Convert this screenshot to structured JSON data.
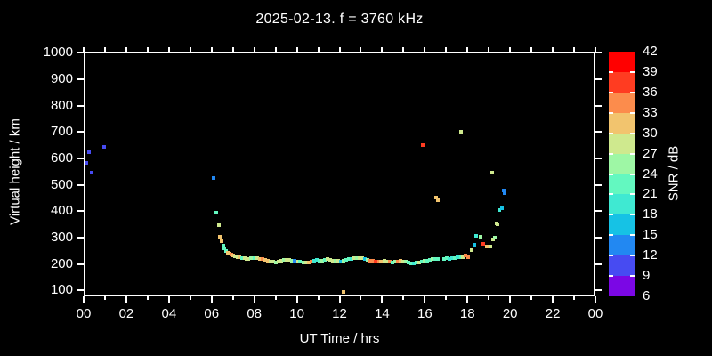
{
  "title": "2025-02-13. f = 3760 kHz",
  "x_axis": {
    "label": "UT Time / hrs",
    "tick_hours": [
      0,
      2,
      4,
      6,
      8,
      10,
      12,
      14,
      16,
      18,
      20,
      22,
      24
    ],
    "tick_labels": [
      "00",
      "02",
      "04",
      "06",
      "08",
      "10",
      "12",
      "14",
      "16",
      "18",
      "20",
      "22",
      "00"
    ]
  },
  "y_axis": {
    "label": "Virtual height / km",
    "tick_values": [
      100,
      200,
      300,
      400,
      500,
      600,
      700,
      800,
      900,
      1000
    ]
  },
  "colorbar": {
    "label": "SNR / dB",
    "levels_low_to_high": [
      6,
      9,
      12,
      15,
      18,
      21,
      24,
      27,
      30,
      33,
      36,
      39,
      42
    ],
    "colors_low_to_high": [
      "#7b07e5",
      "#474bf2",
      "#2288f2",
      "#16c2e5",
      "#3fe9d2",
      "#63f8c0",
      "#9ef7a5",
      "#cfe98e",
      "#f2c46e",
      "#fc8c4c",
      "#ff3c21",
      "#ff0000"
    ]
  },
  "chart_data": {
    "type": "scatter",
    "title": "2025-02-13. f = 3760 kHz",
    "xlabel": "UT Time / hrs",
    "ylabel": "Virtual height / km",
    "color_label": "SNR / dB",
    "xlim_hours": [
      0,
      24
    ],
    "ylim_km": [
      75,
      1005
    ],
    "grid": false,
    "point_format": [
      "time_hours_ut",
      "virtual_height_km",
      "snr_db"
    ],
    "points": [
      [
        0.11,
        585,
        10
      ],
      [
        0.25,
        625,
        10
      ],
      [
        0.36,
        545,
        10
      ],
      [
        0.95,
        645,
        10
      ],
      [
        6.1,
        525,
        13
      ],
      [
        6.21,
        394,
        22
      ],
      [
        6.34,
        348,
        28
      ],
      [
        6.4,
        305,
        31
      ],
      [
        6.47,
        288,
        31
      ],
      [
        6.55,
        270,
        22
      ],
      [
        6.61,
        260,
        22
      ],
      [
        6.68,
        250,
        22
      ],
      [
        6.76,
        243,
        31
      ],
      [
        6.85,
        240,
        31
      ],
      [
        6.93,
        236,
        34
      ],
      [
        7.01,
        233,
        31
      ],
      [
        7.1,
        230,
        28
      ],
      [
        7.22,
        227,
        28
      ],
      [
        7.32,
        227,
        31
      ],
      [
        7.43,
        224,
        22
      ],
      [
        7.55,
        222,
        28
      ],
      [
        7.64,
        220,
        28
      ],
      [
        7.73,
        220,
        28
      ],
      [
        7.86,
        222,
        25
      ],
      [
        8.0,
        223,
        22
      ],
      [
        8.13,
        222,
        28
      ],
      [
        8.26,
        220,
        31
      ],
      [
        8.39,
        218,
        34
      ],
      [
        8.52,
        215,
        31
      ],
      [
        8.64,
        213,
        31
      ],
      [
        8.77,
        210,
        28
      ],
      [
        8.9,
        208,
        28
      ],
      [
        9.02,
        206,
        25
      ],
      [
        9.15,
        208,
        28
      ],
      [
        9.28,
        212,
        28
      ],
      [
        9.4,
        215,
        25
      ],
      [
        9.53,
        216,
        28
      ],
      [
        9.66,
        215,
        28
      ],
      [
        9.78,
        213,
        25
      ],
      [
        9.91,
        212,
        13
      ],
      [
        10.04,
        210,
        28
      ],
      [
        10.16,
        208,
        22
      ],
      [
        10.29,
        206,
        25
      ],
      [
        10.42,
        205,
        28
      ],
      [
        10.54,
        207,
        31
      ],
      [
        10.67,
        210,
        34
      ],
      [
        10.8,
        213,
        19
      ],
      [
        10.92,
        215,
        19
      ],
      [
        11.05,
        213,
        22
      ],
      [
        11.18,
        214,
        25
      ],
      [
        11.3,
        216,
        22
      ],
      [
        11.43,
        218,
        28
      ],
      [
        11.56,
        216,
        28
      ],
      [
        11.68,
        214,
        28
      ],
      [
        11.81,
        213,
        25
      ],
      [
        11.94,
        212,
        28
      ],
      [
        12.06,
        211,
        16
      ],
      [
        12.19,
        213,
        25
      ],
      [
        12.32,
        216,
        22
      ],
      [
        12.44,
        218,
        22
      ],
      [
        12.57,
        221,
        19
      ],
      [
        12.7,
        223,
        28
      ],
      [
        12.82,
        222,
        25
      ],
      [
        12.95,
        223,
        28
      ],
      [
        13.08,
        222,
        28
      ],
      [
        13.2,
        220,
        16
      ],
      [
        13.33,
        217,
        25
      ],
      [
        13.46,
        214,
        34
      ],
      [
        13.58,
        212,
        34
      ],
      [
        13.71,
        210,
        37
      ],
      [
        13.84,
        209,
        34
      ],
      [
        13.96,
        210,
        31
      ],
      [
        14.09,
        212,
        28
      ],
      [
        14.22,
        211,
        28
      ],
      [
        14.34,
        209,
        34
      ],
      [
        14.47,
        207,
        22
      ],
      [
        14.6,
        208,
        25
      ],
      [
        14.72,
        210,
        34
      ],
      [
        14.85,
        212,
        31
      ],
      [
        14.98,
        211,
        28
      ],
      [
        15.1,
        209,
        25
      ],
      [
        15.23,
        206,
        22
      ],
      [
        15.36,
        204,
        22
      ],
      [
        15.48,
        203,
        19
      ],
      [
        15.61,
        205,
        22
      ],
      [
        15.74,
        207,
        28
      ],
      [
        15.86,
        210,
        22
      ],
      [
        15.99,
        212,
        25
      ],
      [
        16.12,
        214,
        22
      ],
      [
        16.24,
        216,
        22
      ],
      [
        16.37,
        218,
        25
      ],
      [
        16.5,
        219,
        22
      ],
      [
        16.62,
        220,
        22
      ],
      [
        16.92,
        221,
        22
      ],
      [
        17.05,
        222,
        22
      ],
      [
        17.17,
        221,
        19
      ],
      [
        17.3,
        222,
        19
      ],
      [
        17.42,
        224,
        22
      ],
      [
        17.55,
        226,
        19
      ],
      [
        17.68,
        225,
        22
      ],
      [
        17.8,
        228,
        28
      ],
      [
        17.92,
        233,
        34
      ],
      [
        18.04,
        226,
        34
      ],
      [
        18.2,
        253,
        28
      ],
      [
        18.33,
        273,
        16
      ],
      [
        18.42,
        307,
        19
      ],
      [
        18.6,
        304,
        25
      ],
      [
        18.73,
        277,
        37
      ],
      [
        18.9,
        267,
        31
      ],
      [
        19.06,
        267,
        28
      ],
      [
        19.18,
        294,
        28
      ],
      [
        19.28,
        300,
        25
      ],
      [
        19.36,
        355,
        28
      ],
      [
        19.42,
        352,
        28
      ],
      [
        19.5,
        405,
        19
      ],
      [
        19.62,
        412,
        16
      ],
      [
        12.18,
        95,
        31
      ],
      [
        15.9,
        650,
        37
      ],
      [
        16.53,
        452,
        31
      ],
      [
        16.63,
        442,
        31
      ],
      [
        17.7,
        700,
        28
      ],
      [
        19.15,
        548,
        28
      ],
      [
        19.7,
        479,
        13
      ],
      [
        19.76,
        468,
        13
      ]
    ]
  }
}
